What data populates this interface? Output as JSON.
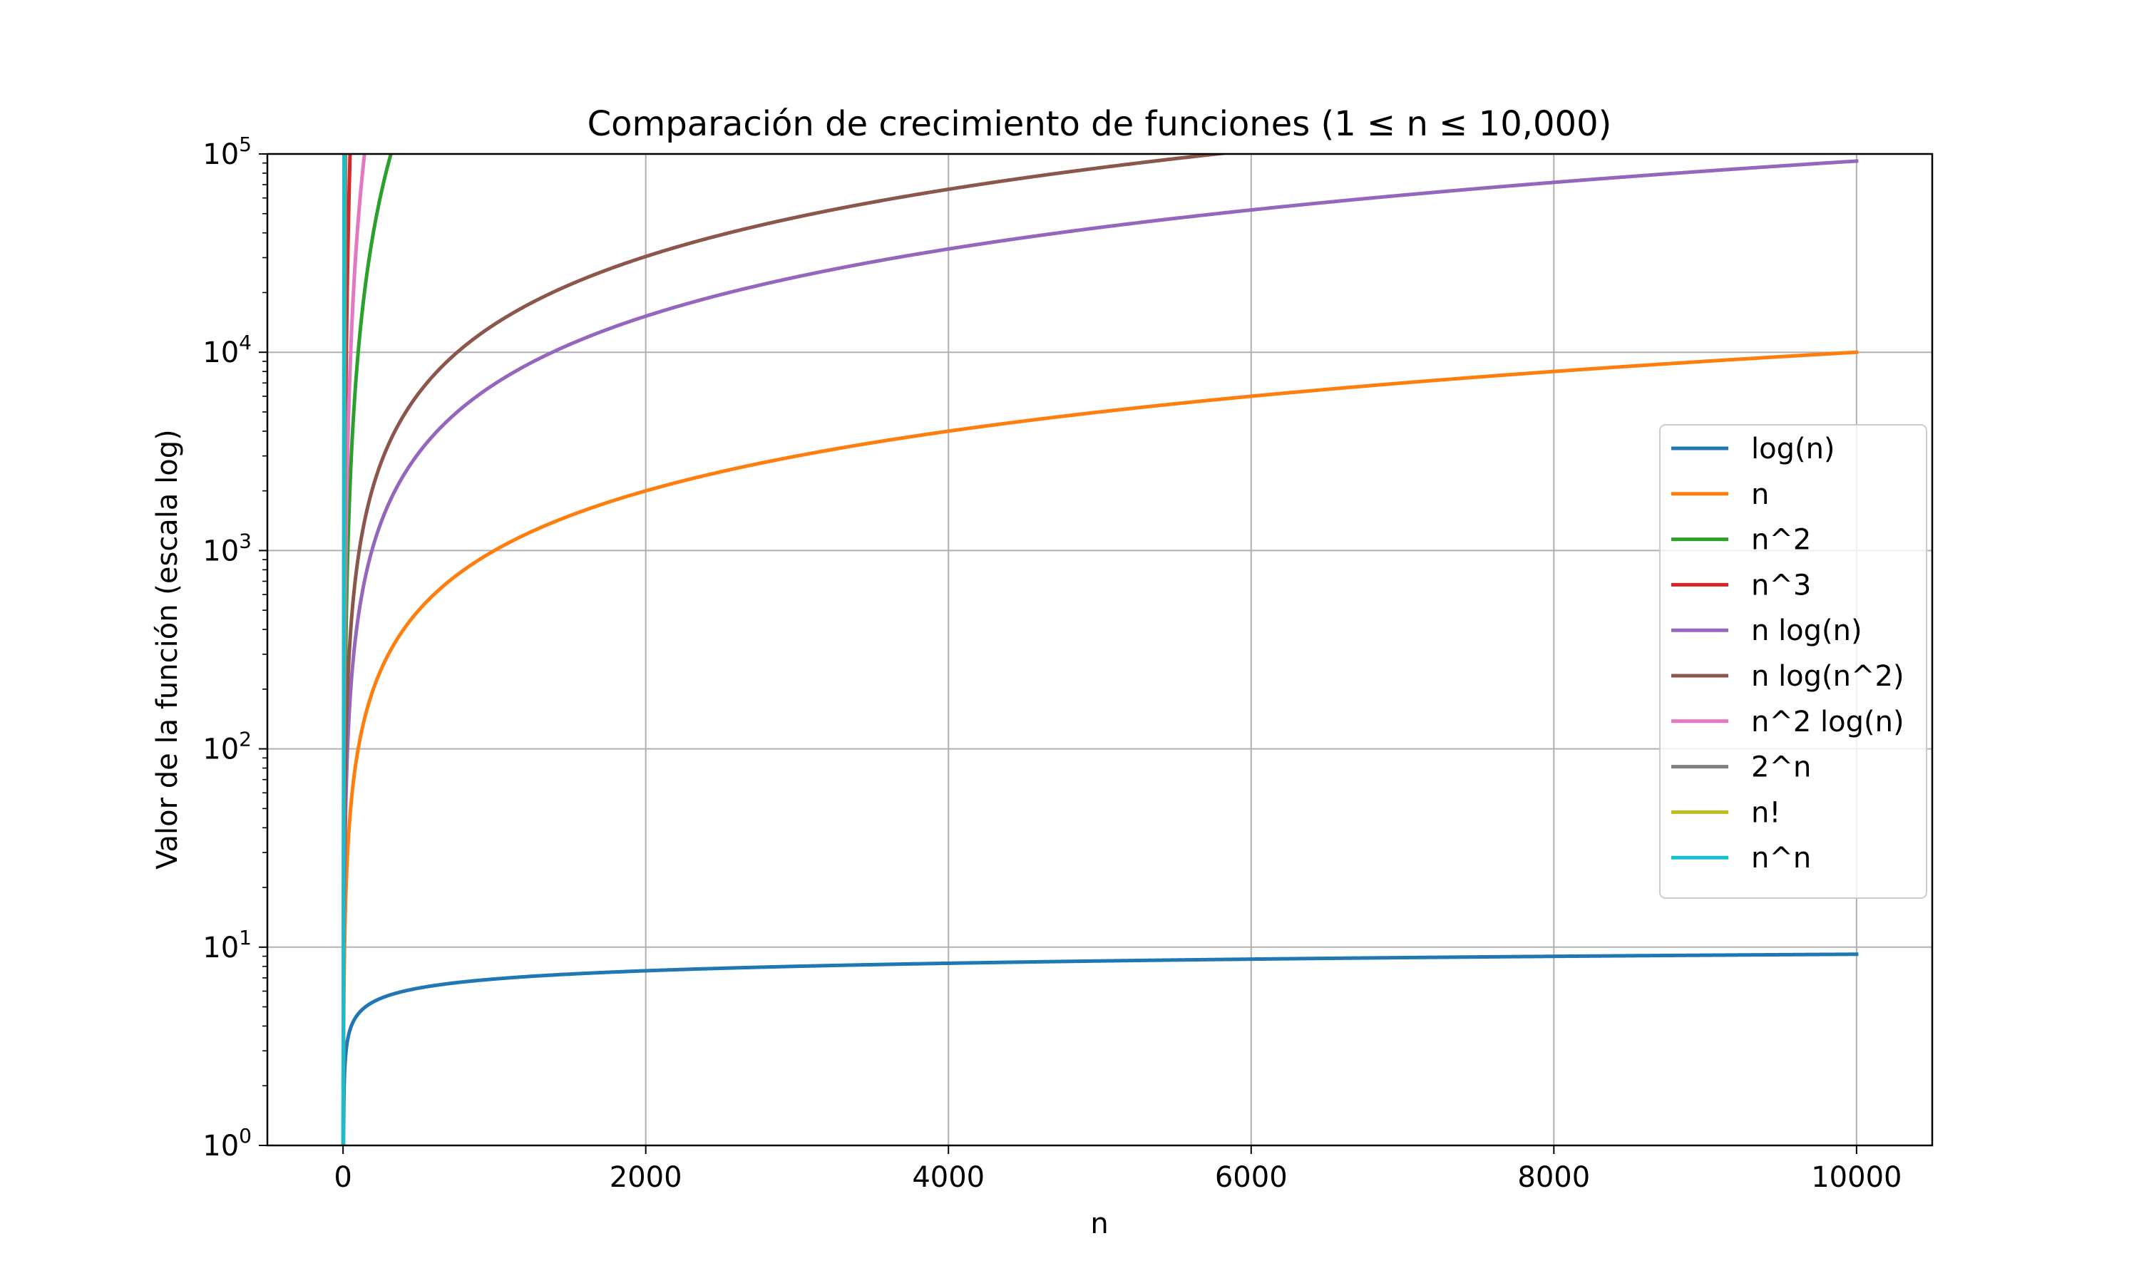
{
  "chart_data": {
    "type": "line",
    "title": "Comparación de crecimiento de funciones (1 ≤ n ≤ 10,000)",
    "xlabel": "n",
    "ylabel": "Valor de la función (escala log)",
    "xlim": [
      -500,
      10500
    ],
    "ylim": [
      1,
      100000
    ],
    "yscale": "log",
    "grid": true,
    "legend_position": "center-right",
    "x_ticks": [
      {
        "value": 0,
        "label": "0"
      },
      {
        "value": 2000,
        "label": "2000"
      },
      {
        "value": 4000,
        "label": "4000"
      },
      {
        "value": 6000,
        "label": "6000"
      },
      {
        "value": 8000,
        "label": "8000"
      },
      {
        "value": 10000,
        "label": "10000"
      }
    ],
    "y_ticks": [
      {
        "value": 1,
        "base": "10",
        "exp": "0"
      },
      {
        "value": 10,
        "base": "10",
        "exp": "1"
      },
      {
        "value": 100,
        "base": "10",
        "exp": "2"
      },
      {
        "value": 1000,
        "base": "10",
        "exp": "3"
      },
      {
        "value": 10000,
        "base": "10",
        "exp": "4"
      },
      {
        "value": 100000,
        "base": "10",
        "exp": "5"
      }
    ],
    "x_domain": [
      1,
      10000
    ],
    "series": [
      {
        "name": "log(n)",
        "function": "log(n)",
        "color": "#1f77b4"
      },
      {
        "name": "n",
        "function": "n",
        "color": "#ff7f0e"
      },
      {
        "name": "n^2",
        "function": "n^2",
        "color": "#2ca02c"
      },
      {
        "name": "n^3",
        "function": "n^3",
        "color": "#d62728"
      },
      {
        "name": "n log(n)",
        "function": "n*log(n)",
        "color": "#9467bd"
      },
      {
        "name": "n log(n^2)",
        "function": "n*log(n^2)",
        "color": "#8c564b"
      },
      {
        "name": "n^2 log(n)",
        "function": "n^2*log(n)",
        "color": "#e377c2"
      },
      {
        "name": "2^n",
        "function": "2^n",
        "color": "#7f7f7f"
      },
      {
        "name": "n!",
        "function": "n!",
        "color": "#bcbd22"
      },
      {
        "name": "n^n",
        "function": "n^n",
        "color": "#17becf"
      }
    ]
  }
}
